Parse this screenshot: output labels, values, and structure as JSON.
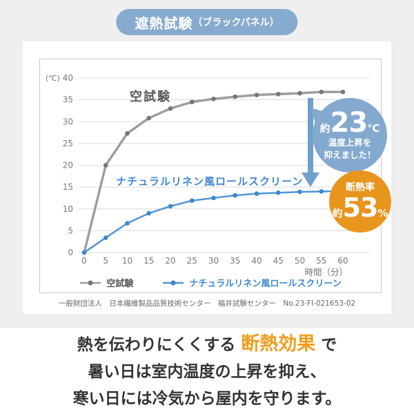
{
  "badge": {
    "main": "遮熱試験",
    "sub": "（ブラックパネル）"
  },
  "chart_data": {
    "type": "line",
    "x": [
      0,
      5,
      10,
      15,
      20,
      25,
      30,
      35,
      40,
      45,
      50,
      55,
      60
    ],
    "xlabel": "時間（分）",
    "ylabel": "(℃)",
    "ylim": [
      0,
      40
    ],
    "ytick_step": 5,
    "grid": "horizontal",
    "legend_position": "bottom",
    "series": [
      {
        "name": "空試験",
        "color": "#9e9e9e",
        "marker_color": "#767676",
        "label_color": "#555555",
        "width": 3.5,
        "values": [
          0,
          20,
          27.3,
          30.8,
          33,
          34.5,
          35.2,
          35.7,
          36.1,
          36.3,
          36.5,
          36.8,
          36.8
        ]
      },
      {
        "name": "ナチュラルリネン風ロールスクリーン",
        "color": "#4e94d4",
        "marker_color": "#3f87cc",
        "label_color": "#4287cf",
        "width": 2.5,
        "values": [
          0,
          3.4,
          6.7,
          9,
          10.6,
          11.9,
          12.5,
          13.1,
          13.5,
          13.7,
          13.9,
          14,
          14.1
        ]
      }
    ],
    "axis_color": "#777777",
    "gridline_color": "#dcdcdc",
    "arrow_color": "#6f9fca"
  },
  "annotations": {
    "bubble": {
      "prefix": "約",
      "value": "23",
      "unit": "℃",
      "line1": "温度上昇を",
      "line2": "抑えました！"
    },
    "badge": {
      "title": "断熱率",
      "prefix": "約",
      "value": "53",
      "unit": "%"
    }
  },
  "footnote": "一般財団法人　日本繊維製品品質技術センター　福井試験センター　No.23-FI-021653-02",
  "caption": {
    "line1_pre": "熱を伝わりにくくする ",
    "line1_highlight": "断熱効果",
    "line1_post": " で",
    "line2": "暑い日は室内温度の上昇を抑え、",
    "line3": "寒い日には冷気から屋内を守ります。"
  }
}
